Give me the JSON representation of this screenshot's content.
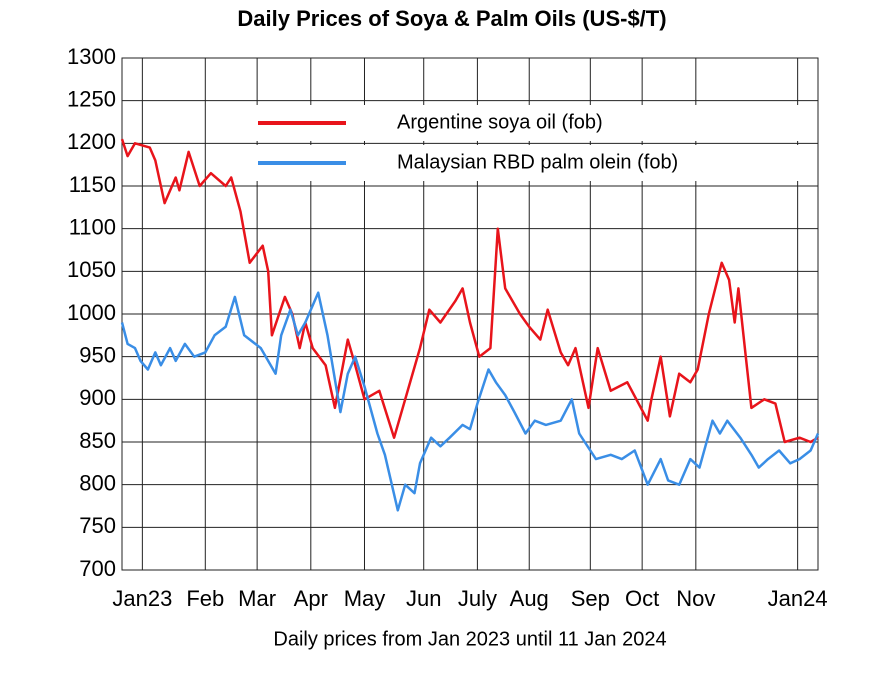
{
  "chart_data": {
    "type": "line",
    "title": "Daily Prices of Soya & Palm Oils (US-$/T)",
    "x_label": "Daily prices from Jan 2023 until 11 Jan 2024",
    "xlim": [
      0,
      376
    ],
    "xticks": [
      {
        "value": 11,
        "label": "Jan23"
      },
      {
        "value": 45,
        "label": "Feb"
      },
      {
        "value": 73,
        "label": "Mar"
      },
      {
        "value": 102,
        "label": "Apr"
      },
      {
        "value": 131,
        "label": "May"
      },
      {
        "value": 163,
        "label": "Jun"
      },
      {
        "value": 192,
        "label": "July"
      },
      {
        "value": 220,
        "label": "Aug"
      },
      {
        "value": 253,
        "label": "Sep"
      },
      {
        "value": 281,
        "label": "Oct"
      },
      {
        "value": 310,
        "label": "Nov"
      },
      {
        "value": 365,
        "label": "Jan24"
      }
    ],
    "ylim": [
      700,
      1300
    ],
    "yticks": [
      700,
      750,
      800,
      850,
      900,
      950,
      1000,
      1050,
      1100,
      1150,
      1200,
      1250,
      1300
    ],
    "grid": true,
    "legend": "top",
    "series": [
      {
        "name": "Argentine soya oil (fob)",
        "color": "#e8141b",
        "x": [
          0,
          3,
          7,
          15,
          18,
          23,
          29,
          31,
          36,
          42,
          48,
          56,
          59,
          64,
          69,
          76,
          79,
          81,
          88,
          92,
          96,
          99,
          103,
          110,
          115,
          122,
          126,
          131,
          139,
          147,
          153,
          161,
          166,
          172,
          180,
          184,
          188,
          193,
          199,
          203,
          207,
          215,
          220,
          226,
          230,
          237,
          241,
          245,
          252,
          257,
          264,
          273,
          284,
          286,
          291,
          296,
          301,
          307,
          311,
          317,
          324,
          328,
          331,
          333,
          337,
          340,
          347,
          353,
          358,
          366,
          372,
          376
        ],
        "values": [
          1205,
          1185,
          1200,
          1195,
          1180,
          1130,
          1160,
          1145,
          1190,
          1150,
          1165,
          1150,
          1160,
          1120,
          1060,
          1080,
          1050,
          975,
          1020,
          1000,
          960,
          990,
          960,
          940,
          890,
          970,
          940,
          900,
          910,
          855,
          900,
          960,
          1005,
          990,
          1015,
          1030,
          990,
          950,
          960,
          1100,
          1030,
          1000,
          985,
          970,
          1005,
          955,
          940,
          960,
          890,
          960,
          910,
          920,
          875,
          900,
          950,
          880,
          930,
          920,
          935,
          1000,
          1060,
          1040,
          990,
          1030,
          950,
          890,
          900,
          895,
          850,
          855,
          850,
          855
        ]
      },
      {
        "name": "Malaysian RBD palm olein (fob)",
        "color": "#3a8ee6",
        "x": [
          0,
          3,
          7,
          10,
          14,
          18,
          21,
          26,
          29,
          34,
          39,
          45,
          50,
          56,
          61,
          66,
          75,
          83,
          86,
          91,
          95,
          99,
          106,
          111,
          118,
          122,
          126,
          131,
          138,
          142,
          149,
          153,
          158,
          161,
          167,
          172,
          177,
          184,
          188,
          192,
          198,
          202,
          207,
          212,
          218,
          223,
          229,
          237,
          243,
          247,
          256,
          264,
          270,
          277,
          284,
          291,
          295,
          301,
          307,
          312,
          319,
          323,
          327,
          334,
          340,
          344,
          349,
          355,
          361,
          366,
          372,
          376
        ],
        "values": [
          990,
          965,
          960,
          945,
          935,
          955,
          940,
          960,
          945,
          965,
          950,
          955,
          975,
          985,
          1020,
          975,
          960,
          930,
          975,
          1005,
          975,
          990,
          1025,
          975,
          885,
          930,
          950,
          915,
          860,
          835,
          770,
          800,
          790,
          825,
          855,
          845,
          855,
          870,
          865,
          895,
          935,
          920,
          905,
          885,
          860,
          875,
          870,
          875,
          900,
          860,
          830,
          835,
          830,
          840,
          800,
          830,
          805,
          800,
          830,
          820,
          875,
          860,
          875,
          855,
          835,
          820,
          830,
          840,
          825,
          830,
          840,
          860
        ]
      }
    ]
  }
}
